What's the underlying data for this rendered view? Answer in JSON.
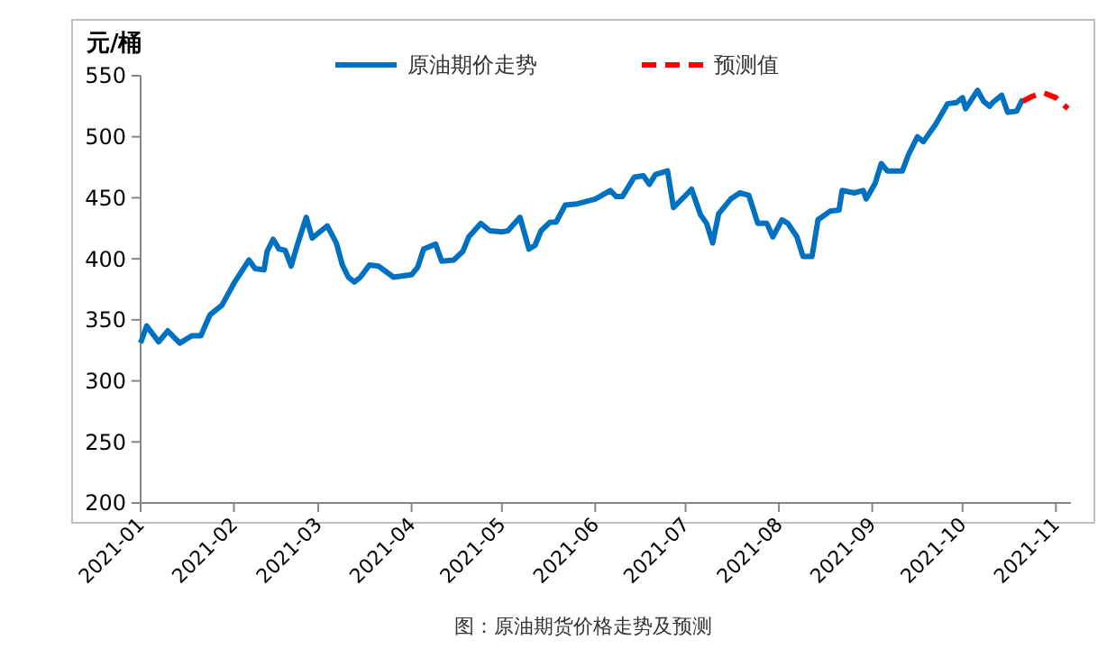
{
  "chart_data": {
    "type": "line",
    "ylabel": "元/桶",
    "annotations": [
      "图：原油期货价格走势及预测"
    ],
    "xlim": [
      "2021-01-01",
      "2021-11-06"
    ],
    "xticks": [
      "2021-01",
      "2021-02",
      "2021-03",
      "2021-04",
      "2021-05",
      "2021-06",
      "2021-07",
      "2021-08",
      "2021-09",
      "2021-10",
      "2021-11"
    ],
    "ylim": [
      200,
      550
    ],
    "yticks": [
      200,
      250,
      300,
      350,
      400,
      450,
      500,
      550
    ],
    "grid": false,
    "legend": "top",
    "series": [
      {
        "name": "原油期价走势",
        "color": "#0070c0",
        "line_style": "solid",
        "x": [
          "2021-01-01",
          "2021-01-03",
          "2021-01-07",
          "2021-01-10",
          "2021-01-14",
          "2021-01-18",
          "2021-01-21",
          "2021-01-24",
          "2021-01-28",
          "2021-02-01",
          "2021-02-06",
          "2021-02-08",
          "2021-02-11",
          "2021-02-12",
          "2021-02-14",
          "2021-02-16",
          "2021-02-18",
          "2021-02-20",
          "2021-02-22",
          "2021-02-25",
          "2021-02-27",
          "2021-03-03",
          "2021-03-04",
          "2021-03-07",
          "2021-03-09",
          "2021-03-11",
          "2021-03-13",
          "2021-03-15",
          "2021-03-18",
          "2021-03-21",
          "2021-03-26",
          "2021-04-01",
          "2021-04-03",
          "2021-04-05",
          "2021-04-09",
          "2021-04-11",
          "2021-04-15",
          "2021-04-18",
          "2021-04-20",
          "2021-04-24",
          "2021-04-27",
          "2021-05-01",
          "2021-05-03",
          "2021-05-07",
          "2021-05-10",
          "2021-05-12",
          "2021-05-14",
          "2021-05-17",
          "2021-05-19",
          "2021-05-22",
          "2021-05-26",
          "2021-06-01",
          "2021-06-06",
          "2021-06-08",
          "2021-06-10",
          "2021-06-14",
          "2021-06-17",
          "2021-06-19",
          "2021-06-21",
          "2021-06-25",
          "2021-06-27",
          "2021-07-03",
          "2021-07-06",
          "2021-07-08",
          "2021-07-10",
          "2021-07-12",
          "2021-07-16",
          "2021-07-19",
          "2021-07-22",
          "2021-07-25",
          "2021-07-28",
          "2021-07-30",
          "2021-08-02",
          "2021-08-04",
          "2021-08-07",
          "2021-08-09",
          "2021-08-12",
          "2021-08-14",
          "2021-08-18",
          "2021-08-21",
          "2021-08-22",
          "2021-08-26",
          "2021-08-29",
          "2021-08-30",
          "2021-09-02",
          "2021-09-04",
          "2021-09-06",
          "2021-09-11",
          "2021-09-13",
          "2021-09-16",
          "2021-09-18",
          "2021-09-22",
          "2021-09-26",
          "2021-09-29",
          "2021-10-01",
          "2021-10-02",
          "2021-10-06",
          "2021-10-08",
          "2021-10-10",
          "2021-10-11",
          "2021-10-14",
          "2021-10-16",
          "2021-10-19",
          "2021-10-21"
        ],
        "values": [
          331,
          345,
          332,
          341,
          331,
          337,
          337,
          354,
          362,
          380,
          399,
          392,
          391,
          406,
          416,
          408,
          407,
          394,
          411,
          434,
          417,
          425,
          427,
          413,
          395,
          385,
          381,
          385,
          395,
          394,
          385,
          387,
          393,
          408,
          412,
          398,
          399,
          406,
          418,
          429,
          423,
          422,
          423,
          434,
          408,
          411,
          423,
          430,
          430,
          444,
          445,
          449,
          456,
          451,
          451,
          467,
          468,
          461,
          469,
          472,
          442,
          457,
          436,
          429,
          413,
          437,
          449,
          454,
          452,
          429,
          429,
          418,
          432,
          429,
          418,
          402,
          402,
          432,
          439,
          440,
          456,
          454,
          456,
          449,
          462,
          478,
          472,
          472,
          485,
          500,
          496,
          510,
          527,
          528,
          532,
          523,
          538,
          529,
          525,
          528,
          534,
          520,
          521,
          531
        ]
      },
      {
        "name": "预测值",
        "color": "#ff0000",
        "line_style": "dashed",
        "x": [
          "2021-10-21",
          "2021-10-24",
          "2021-10-28",
          "2021-11-01",
          "2021-11-05"
        ],
        "values": [
          529,
          533,
          536,
          532,
          523
        ]
      }
    ]
  }
}
